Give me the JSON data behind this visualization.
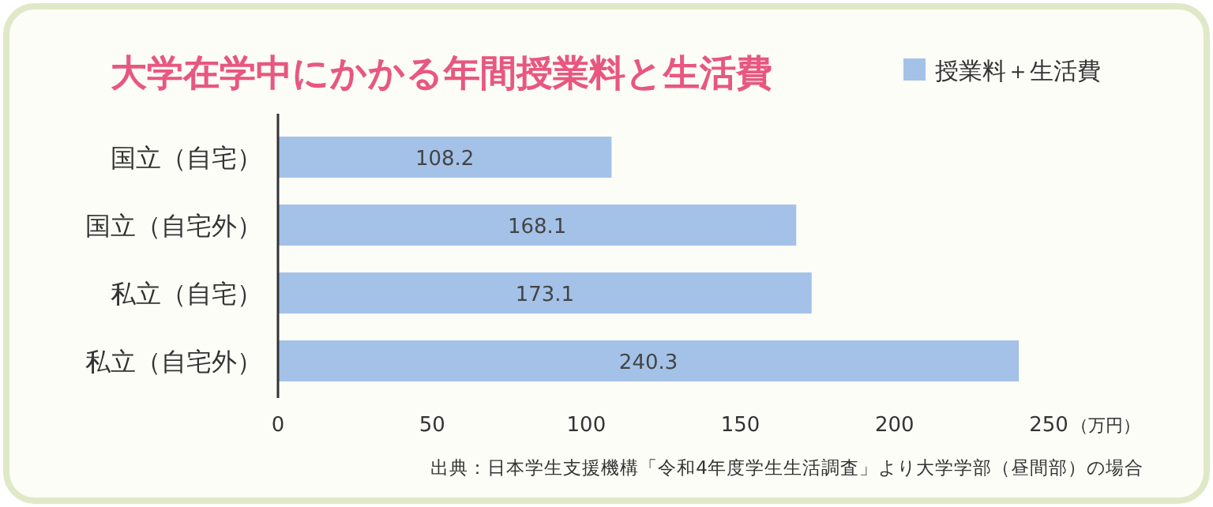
{
  "chart_data": {
    "type": "bar",
    "orientation": "horizontal",
    "title": "大学在学中にかかる年間授業料と生活費",
    "categories": [
      "国立（自宅）",
      "国立（自宅外）",
      "私立（自宅）",
      "私立（自宅外）"
    ],
    "series": [
      {
        "name": "授業料＋生活費",
        "color": "#a4c2e8",
        "values": [
          108.2,
          168.1,
          173.1,
          240.3
        ]
      }
    ],
    "xlim": [
      0,
      250
    ],
    "xticks": [
      0,
      50,
      100,
      150,
      200,
      250
    ],
    "xlabel": "（万円）",
    "data_labels": true,
    "legend": "top right",
    "grid": false,
    "annotations": [
      "出典：日本学生支援機構「令和4年度学生生活調査」より大学学部（昼間部）の場合"
    ]
  }
}
